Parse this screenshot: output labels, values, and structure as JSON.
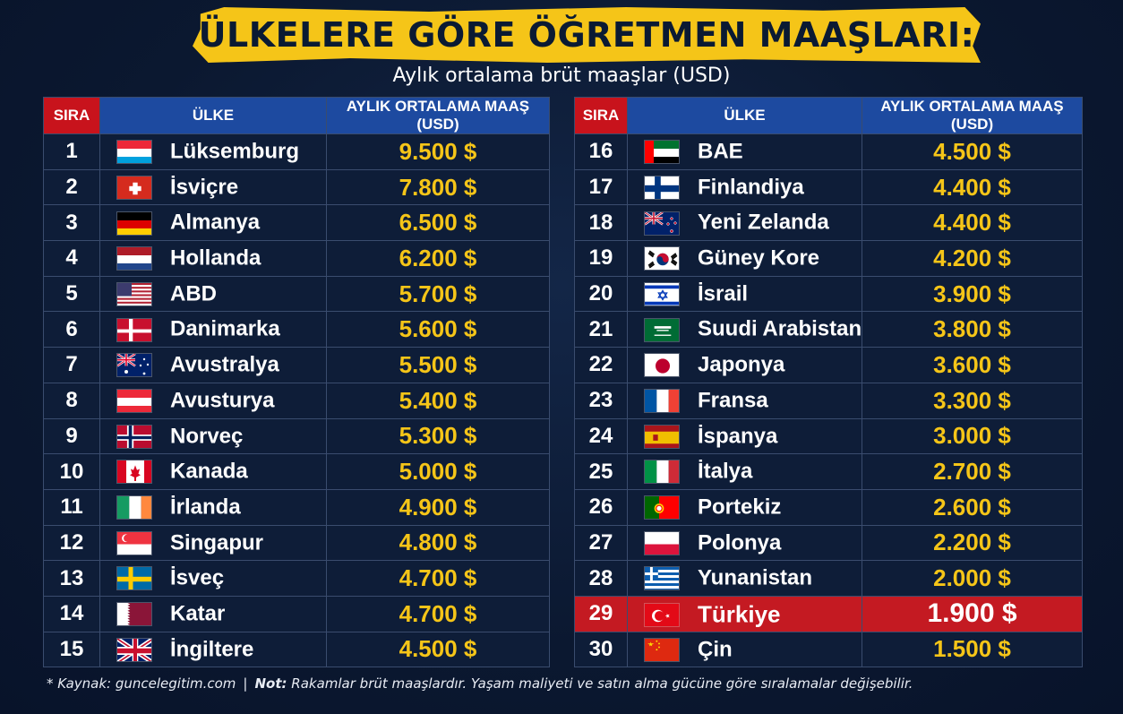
{
  "title": "ÜLKELERE GÖRE ÖĞRETMEN MAAŞLARI:",
  "subtitle": "Aylık ortalama brüt maaşlar (USD)",
  "headers": {
    "rank": "SIRA",
    "country": "ÜLKE",
    "salary": "AYLIK ORTALAMA MAAŞ (USD)"
  },
  "footer": {
    "source": "* Kaynak: guncelegitim.com",
    "separator": "|",
    "note_label": "Not:",
    "note_text": "Rakamlar brüt maaşlardır. Yaşam maliyeti ve satın alma gücüne göre sıralamalar değişebilir."
  },
  "colors": {
    "accent_yellow": "#f5c518",
    "header_red": "#c8131c",
    "header_blue": "#1d4aa0",
    "highlight_row": "#c41a22",
    "background": "#0b1830"
  },
  "chart_data": {
    "type": "table",
    "title": "ÜLKELERE GÖRE ÖĞRETMEN MAAŞLARI:",
    "subtitle": "Aylık ortalama brüt maaşlar (USD)",
    "columns": [
      "SIRA",
      "ÜLKE",
      "AYLIK ORTALAMA MAAŞ (USD)"
    ],
    "highlighted_rank": 29,
    "rows": [
      {
        "rank": "1",
        "flag": "luxembourg-flag-icon",
        "country": "Lüksemburg",
        "salary": "9.500 $",
        "value": 9500
      },
      {
        "rank": "2",
        "flag": "switzerland-flag-icon",
        "country": "İsviçre",
        "salary": "7.800 $",
        "value": 7800
      },
      {
        "rank": "3",
        "flag": "germany-flag-icon",
        "country": "Almanya",
        "salary": "6.500 $",
        "value": 6500
      },
      {
        "rank": "4",
        "flag": "netherlands-flag-icon",
        "country": "Hollanda",
        "salary": "6.200 $",
        "value": 6200
      },
      {
        "rank": "5",
        "flag": "usa-flag-icon",
        "country": "ABD",
        "salary": "5.700 $",
        "value": 5700
      },
      {
        "rank": "6",
        "flag": "denmark-flag-icon",
        "country": "Danimarka",
        "salary": "5.600 $",
        "value": 5600
      },
      {
        "rank": "7",
        "flag": "australia-flag-icon",
        "country": "Avustralya",
        "salary": "5.500 $",
        "value": 5500
      },
      {
        "rank": "8",
        "flag": "austria-flag-icon",
        "country": "Avusturya",
        "salary": "5.400 $",
        "value": 5400
      },
      {
        "rank": "9",
        "flag": "norway-flag-icon",
        "country": "Norveç",
        "salary": "5.300 $",
        "value": 5300
      },
      {
        "rank": "10",
        "flag": "canada-flag-icon",
        "country": "Kanada",
        "salary": "5.000 $",
        "value": 5000
      },
      {
        "rank": "11",
        "flag": "ireland-flag-icon",
        "country": "İrlanda",
        "salary": "4.900 $",
        "value": 4900
      },
      {
        "rank": "12",
        "flag": "singapore-flag-icon",
        "country": "Singapur",
        "salary": "4.800 $",
        "value": 4800
      },
      {
        "rank": "13",
        "flag": "sweden-flag-icon",
        "country": "İsveç",
        "salary": "4.700 $",
        "value": 4700
      },
      {
        "rank": "14",
        "flag": "qatar-flag-icon",
        "country": "Katar",
        "salary": "4.700 $",
        "value": 4700
      },
      {
        "rank": "15",
        "flag": "uk-flag-icon",
        "country": "İngiltere",
        "salary": "4.500 $",
        "value": 4500
      },
      {
        "rank": "16",
        "flag": "uae-flag-icon",
        "country": "BAE",
        "salary": "4.500 $",
        "value": 4500
      },
      {
        "rank": "17",
        "flag": "finland-flag-icon",
        "country": "Finlandiya",
        "salary": "4.400 $",
        "value": 4400
      },
      {
        "rank": "18",
        "flag": "new-zealand-flag-icon",
        "country": "Yeni Zelanda",
        "salary": "4.400 $",
        "value": 4400
      },
      {
        "rank": "19",
        "flag": "south-korea-flag-icon",
        "country": "Güney Kore",
        "salary": "4.200 $",
        "value": 4200
      },
      {
        "rank": "20",
        "flag": "israel-flag-icon",
        "country": "İsrail",
        "salary": "3.900 $",
        "value": 3900
      },
      {
        "rank": "21",
        "flag": "saudi-arabia-flag-icon",
        "country": "Suudi Arabistan",
        "salary": "3.800 $",
        "value": 3800
      },
      {
        "rank": "22",
        "flag": "japan-flag-icon",
        "country": "Japonya",
        "salary": "3.600 $",
        "value": 3600
      },
      {
        "rank": "23",
        "flag": "france-flag-icon",
        "country": "Fransa",
        "salary": "3.300 $",
        "value": 3300
      },
      {
        "rank": "24",
        "flag": "spain-flag-icon",
        "country": "İspanya",
        "salary": "3.000 $",
        "value": 3000
      },
      {
        "rank": "25",
        "flag": "italy-flag-icon",
        "country": "İtalya",
        "salary": "2.700 $",
        "value": 2700
      },
      {
        "rank": "26",
        "flag": "portugal-flag-icon",
        "country": "Portekiz",
        "salary": "2.600 $",
        "value": 2600
      },
      {
        "rank": "27",
        "flag": "poland-flag-icon",
        "country": "Polonya",
        "salary": "2.200 $",
        "value": 2200
      },
      {
        "rank": "28",
        "flag": "greece-flag-icon",
        "country": "Yunanistan",
        "salary": "2.000 $",
        "value": 2000
      },
      {
        "rank": "29",
        "flag": "turkey-flag-icon",
        "country": "Türkiye",
        "salary": "1.900 $",
        "value": 1900
      },
      {
        "rank": "30",
        "flag": "china-flag-icon",
        "country": "Çin",
        "salary": "1.500 $",
        "value": 1500
      }
    ]
  }
}
